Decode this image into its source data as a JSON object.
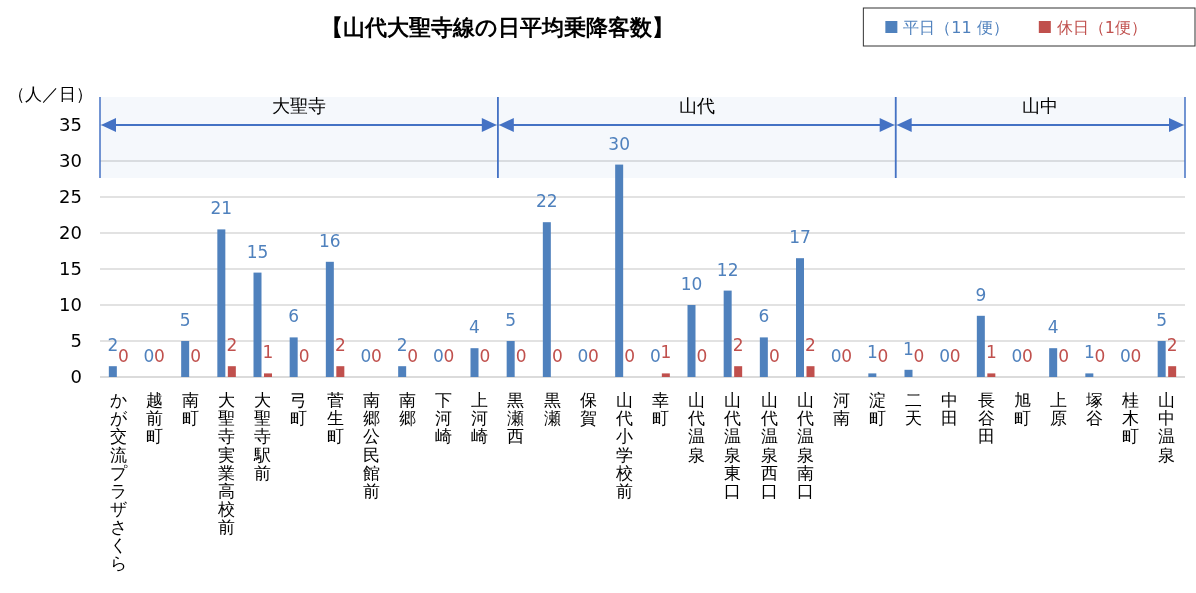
{
  "chart_data": {
    "type": "bar",
    "title": "【山代大聖寺線の日平均乗降客数】",
    "ylabel": "（人／日）",
    "categories": [
      "かが交流プラザさくら",
      "越前町",
      "南町",
      "大聖寺実業高校前",
      "大聖寺駅前",
      "弓町",
      "菅生町",
      "南郷公民館前",
      "南郷",
      "下河崎",
      "上河崎",
      "黒瀬西",
      "黒瀬",
      "保賀",
      "山代小学校前",
      "幸町",
      "山代温泉",
      "山代温泉東口",
      "山代温泉西口",
      "山代温泉南口",
      "河南",
      "淀町",
      "二天",
      "中田",
      "長谷田",
      "旭町",
      "上原",
      "塚谷",
      "桂木町",
      "山中温泉"
    ],
    "series": [
      {
        "name": "平日（11 便）",
        "color": "#4f81bd",
        "values": [
          1.5,
          0,
          5,
          20.5,
          14.5,
          5.5,
          16,
          0,
          1.5,
          0,
          4,
          5,
          21.5,
          0,
          29.5,
          0,
          10,
          12,
          5.5,
          16.5,
          0,
          0.5,
          1,
          0,
          8.5,
          0,
          4,
          0.5,
          0,
          5
        ],
        "value_labels": [
          "2",
          "0",
          "5",
          "21",
          "15",
          "6",
          "16",
          "0",
          "2",
          "0",
          "4",
          "5",
          "22",
          "0",
          "30",
          "0",
          "10",
          "12",
          "6",
          "17",
          "0",
          "1",
          "1",
          "0",
          "9",
          "0",
          "4",
          "1",
          "0",
          "5"
        ]
      },
      {
        "name": "休日（1便）",
        "color": "#c0504d",
        "values": [
          0,
          0,
          0,
          1.5,
          0.5,
          0,
          1.5,
          0,
          0,
          0,
          0,
          0,
          0,
          0,
          0,
          0.5,
          0,
          1.5,
          0,
          1.5,
          0,
          0,
          0,
          0,
          0.5,
          0,
          0,
          0,
          0,
          1.5
        ],
        "value_labels": [
          "0",
          "0",
          "0",
          "2",
          "1",
          "0",
          "2",
          "0",
          "0",
          "0",
          "0",
          "0",
          "0",
          "0",
          "0",
          "1",
          "0",
          "2",
          "0",
          "2",
          "0",
          "0",
          "0",
          "0",
          "1",
          "0",
          "0",
          "0",
          "0",
          "2"
        ]
      }
    ],
    "ylim": [
      0,
      35
    ],
    "yticks": [
      0,
      5,
      10,
      15,
      20,
      25,
      30,
      35
    ],
    "grid": "y",
    "legend": "top right",
    "bands": [
      {
        "axis": "x",
        "from": "かが交流プラザさくら",
        "to": "上河崎",
        "label": "大聖寺",
        "color": "#4472c4"
      },
      {
        "axis": "x",
        "from": "黒瀬西",
        "to": "淀町",
        "label": "山代",
        "color": "#4472c4"
      },
      {
        "axis": "x",
        "from": "二天",
        "to": "山中温泉",
        "label": "山中",
        "color": "#4472c4"
      }
    ]
  }
}
